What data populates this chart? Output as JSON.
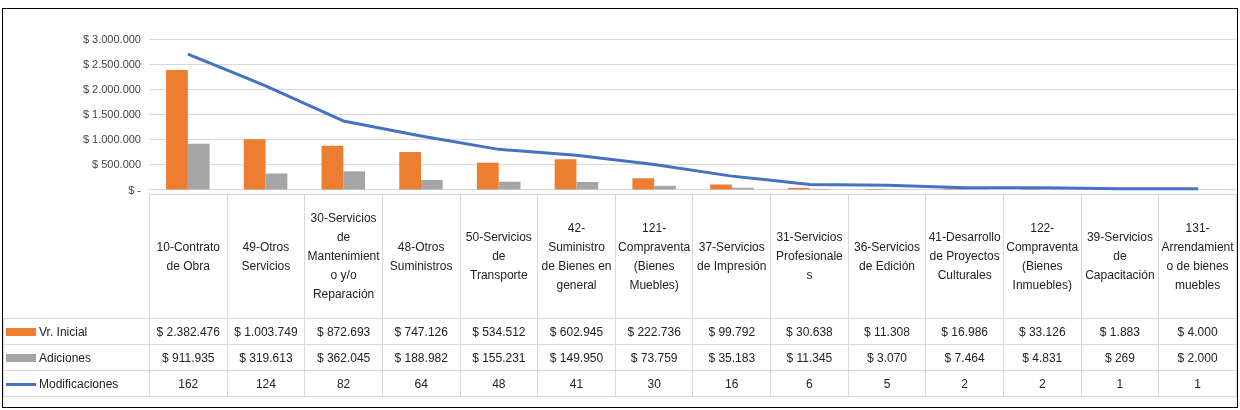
{
  "chart_data": {
    "type": "bar",
    "categories": [
      "10-Contrato de Obra",
      "49-Otros Servicios",
      "30-Servicios de Mantenimiento y/o Reparación",
      "48-Otros Suministros",
      "50-Servicios de Transporte",
      "42-Suministro de Bienes en general",
      "121-Compraventa (Bienes Muebles)",
      "37-Servicios de Impresión",
      "31-Servicios Profesionales",
      "36-Servicios de Edición",
      "41-Desarrollo de Proyectos Culturales",
      "122-Compraventa (Bienes Inmuebles)",
      "39-Servicios de Capacitación",
      "131-Arrendamiento de bienes muebles"
    ],
    "series": [
      {
        "name": "Vr. Inicial",
        "color": "#ed7d31",
        "values": [
          2382476,
          1003749,
          872693,
          747126,
          534512,
          602945,
          222736,
          99792,
          30638,
          11308,
          16986,
          33126,
          1883,
          4000
        ],
        "value_labels": [
          "$ 2.382.476",
          "$ 1.003.749",
          "$ 872.693",
          "$ 747.126",
          "$ 534.512",
          "$ 602.945",
          "$ 222.736",
          "$ 99.792",
          "$ 30.638",
          "$ 11.308",
          "$ 16.986",
          "$ 33.126",
          "$ 1.883",
          "$ 4.000"
        ]
      },
      {
        "name": "Adiciones",
        "color": "#a5a5a5",
        "values": [
          911935,
          319613,
          362045,
          188982,
          155231,
          149950,
          73759,
          35183,
          11345,
          3070,
          7464,
          4831,
          269,
          2000
        ],
        "value_labels": [
          "$ 911.935",
          "$ 319.613",
          "$ 362.045",
          "$ 188.982",
          "$ 155.231",
          "$ 149.950",
          "$ 73.759",
          "$ 35.183",
          "$ 11.345",
          "$ 3.070",
          "$ 7.464",
          "$ 4.831",
          "$ 269",
          "$ 2.000"
        ]
      },
      {
        "name": "Modificaciones",
        "type": "line",
        "axis": "y2",
        "color": "#4472c4",
        "values": [
          162,
          124,
          82,
          64,
          48,
          41,
          30,
          16,
          6,
          5,
          2,
          2,
          1,
          1
        ],
        "value_labels": [
          "162",
          "124",
          "82",
          "64",
          "48",
          "41",
          "30",
          "16",
          "6",
          "5",
          "2",
          "2",
          "1",
          "1"
        ]
      }
    ],
    "ylim": [
      0,
      3000000
    ],
    "yticks": [
      {
        "value": 0,
        "label": "$ -"
      },
      {
        "value": 500000,
        "label": "$ 500.000"
      },
      {
        "value": 1000000,
        "label": "$ 1.000.000"
      },
      {
        "value": 1500000,
        "label": "$ 1.500.000"
      },
      {
        "value": 2000000,
        "label": "$ 2.000.000"
      },
      {
        "value": 2500000,
        "label": "$ 2.500.000"
      },
      {
        "value": 3000000,
        "label": "$ 3.000.000"
      }
    ],
    "y2lim": [
      0,
      180
    ],
    "grid": "y",
    "legend": "bottom",
    "marker": "none"
  }
}
